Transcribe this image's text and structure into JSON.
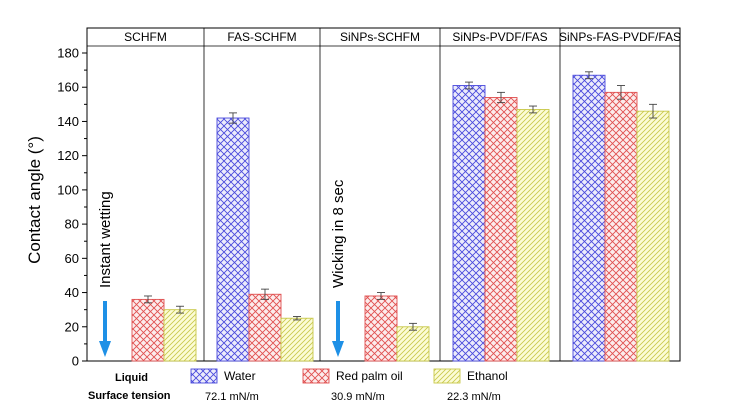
{
  "chart_data": {
    "type": "bar",
    "ylabel": "Contact angle (°)",
    "ylim": [
      0,
      180
    ],
    "yticks": [
      0,
      20,
      40,
      60,
      80,
      100,
      120,
      140,
      160,
      180
    ],
    "categories": [
      "SCHFM",
      "FAS-SCHFM",
      "SiNPs-SCHFM",
      "SiNPs-PVDF/FAS",
      "SiNPs-FAS-PVDF/FAS"
    ],
    "series": [
      {
        "name": "Water",
        "values": [
          null,
          142,
          null,
          161,
          167
        ],
        "errors": [
          null,
          3,
          null,
          2,
          2
        ],
        "color": "#4a4adc",
        "fill": "#ececfb",
        "surface_tension": "72.1 mN/m"
      },
      {
        "name": "Red palm oil",
        "values": [
          36,
          39,
          38,
          154,
          157
        ],
        "errors": [
          2,
          3,
          2,
          3,
          4
        ],
        "color": "#e05050",
        "fill": "#fcecec",
        "surface_tension": "30.9 mN/m"
      },
      {
        "name": "Ethanol",
        "values": [
          30,
          25,
          20,
          147,
          146
        ],
        "errors": [
          2,
          1,
          2,
          2,
          4
        ],
        "color": "#c8c84a",
        "fill": "#fcfcd6",
        "surface_tension": "22.3 mN/m"
      }
    ],
    "annotations": [
      {
        "text": "Instant wetting",
        "panel": 0
      },
      {
        "text": "Wicking in 8 sec",
        "panel": 2
      }
    ],
    "legend": {
      "liquid_label": "Liquid",
      "tension_label": "Surface tension",
      "placement": "bottom"
    },
    "arrow_color": "#1e90e6"
  }
}
